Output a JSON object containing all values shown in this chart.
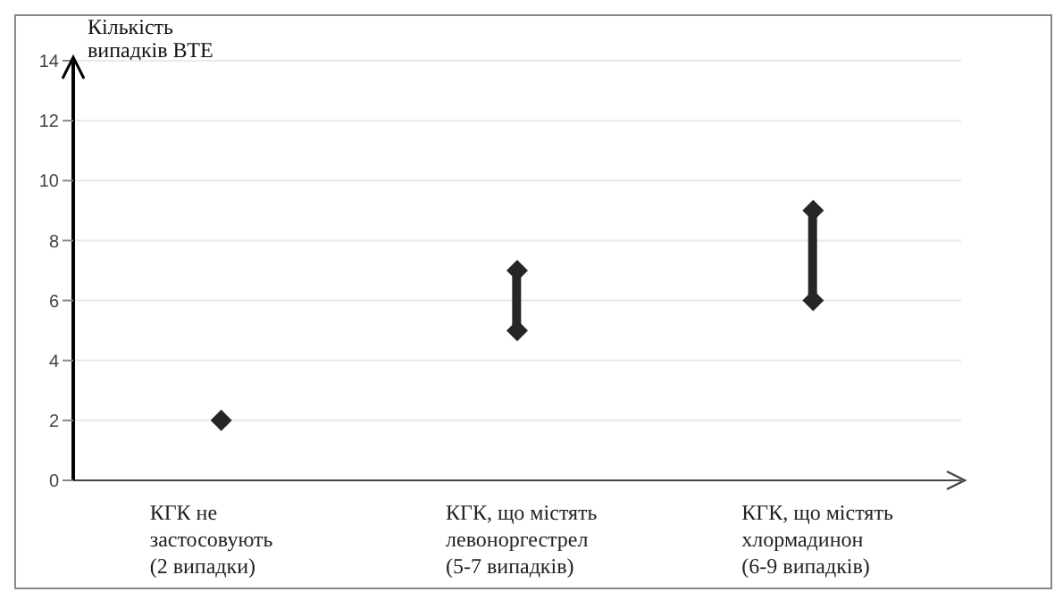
{
  "chart_data": {
    "type": "bar",
    "ylabel": "Кількість випадків ВТЕ",
    "categories": [
      "КГК не\nзастосовують\n(2 випадки)",
      "КГК, що містять\nлевоноргестрел\n(5-7 випадків)",
      "КГК, що містять\nхлормадинон\n(6-9  випадків)"
    ],
    "series": [
      {
        "color": "#262626",
        "base": [
          null,
          5,
          6
        ],
        "values": [
          null,
          2,
          3
        ]
      },
      {
        "type": "scatter",
        "color": "#262626",
        "values": [
          2,
          5,
          6
        ]
      },
      {
        "type": "scatter",
        "color": "#262626",
        "values": [
          null,
          7,
          9
        ]
      }
    ],
    "marker": "diamond",
    "ylim": [
      0,
      14
    ],
    "yticks": [
      0,
      2,
      4,
      6,
      8,
      10,
      12,
      14
    ],
    "grid": "y"
  }
}
